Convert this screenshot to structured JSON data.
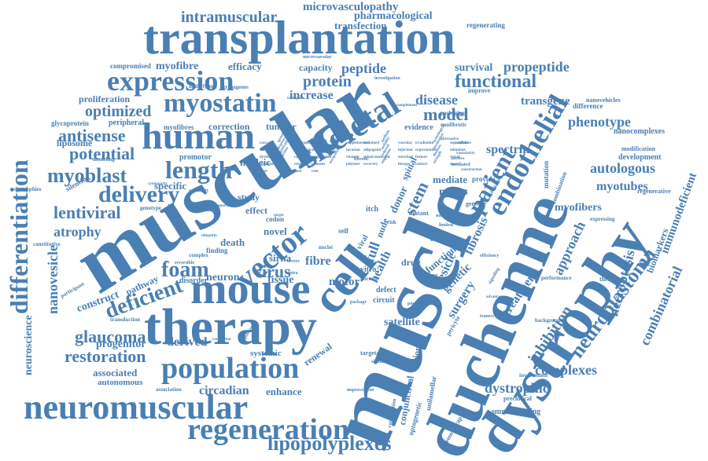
{
  "palette": {
    "word_color": "#4a7fb3",
    "background": "#ffffff"
  },
  "words": {
    "muscle": "muscle",
    "muscular": "muscular",
    "duchenne": "duchenne",
    "dystrophy": "dystrophy",
    "transplantation": "transplantation",
    "therapy": "therapy",
    "mouse": "mouse",
    "cell": "cell",
    "vector": "vector",
    "neuromuscular": "neuromuscular",
    "human": "human",
    "expression": "expression",
    "skeletal": "skeletal",
    "myostatin": "myostatin",
    "population": "population",
    "regeneration": "regeneration",
    "differentiation": "differentiation",
    "endothelial": "endothelial",
    "patient": "patient",
    "neuroblastoma": "neuroblastoma",
    "length": "length",
    "delivery": "delivery",
    "lipopolyplexes": "lipopolyplexes",
    "intramuscular": "intramuscular",
    "microvasculopathy": "microvasculopathy",
    "pharmacological": "pharmacological",
    "transfection": "transfection",
    "regenerating": "regenerating",
    "functional": "functional",
    "propeptide": "propeptide",
    "survival": "survival",
    "peptide": "peptide",
    "protein": "protein",
    "model": "model",
    "disease": "disease",
    "increase": "increase",
    "transgene": "transgene",
    "phenotype": "phenotype",
    "myoblast": "myoblast",
    "antisense": "antisense",
    "potential": "potential",
    "optimized": "optimized",
    "proliferation": "proliferation",
    "myofibre": "myofibre",
    "efficacy": "efficacy",
    "capacity": "capacity",
    "lentiviral": "lentiviral",
    "atrophy": "atrophy",
    "foam": "foam",
    "deficient": "deficient",
    "glaucoma": "glaucoma",
    "restoration": "restoration",
    "progenitor": "progenitor",
    "derived": "derived",
    "nanovesicle": "nanovesicle",
    "neuroscience": "neuroscience",
    "construct": "construct",
    "associated": "associated",
    "autonomous": "autonomous",
    "circadian": "circadian",
    "enhance": "enhance",
    "virus": "virus",
    "fibre": "fibre",
    "tissue": "tissue",
    "neuron": "neuron",
    "motor": "motor",
    "spectrin": "spectrin",
    "autologous": "autologous",
    "myotubes": "myotubes",
    "myofibers": "myofibers",
    "approach": "approach",
    "inhibition": "inhibition",
    "necroptosis": "necroptosis",
    "combinatorial": "combinatorial",
    "complexes": "complexes",
    "dystrophic": "dystrophic",
    "immunodeficient": "immunodeficient",
    "biomarkers": "biomarkers",
    "treatment": "treatment",
    "fibrosis": "fibrosis",
    "vesicle": "vesicle",
    "surgery": "surgery",
    "genetic": "genetic",
    "satellite": "satellite",
    "strategy": "strategy",
    "renewal": "renewal",
    "systemic": "systemic",
    "health": "health",
    "nucleic": "nucleic",
    "specific": "specific",
    "promotor": "promotor",
    "myofibres": "myofibres",
    "correction": "correction",
    "tumour": "tumour",
    "liposome": "liposome",
    "glycoprotein": "glycoprotein",
    "peripheral": "peripheral",
    "compromised": "compromised",
    "minus": "minus",
    "mediate": "mediate",
    "stem": "stem",
    "donor": "donor",
    "drug": "drug",
    "function": "function",
    "study": "study",
    "effect": "effect",
    "death": "death",
    "novel": "novel",
    "sirna": "sirna",
    "pathway": "pathway",
    "disorder": "disorder",
    "defect": "defect",
    "circuit": "circuit",
    "nanocomplexes": "nanocomplexes",
    "modification": "modification",
    "development": "development",
    "regenerative": "regenerative",
    "nanovehicles": "nanovehicles",
    "difference": "difference",
    "improve": "improve",
    "evidence": "evidence",
    "nonfibrotic": "nonfibrotic",
    "packaging": "packaging",
    "investigation": "investigation",
    "underlying": "underlying",
    "transgenes": "transgenes",
    "modeling": "modeling",
    "silencing": "silencing",
    "dystrophies": "dystrophies",
    "genotype": "genotype",
    "constitutive": "constitutive",
    "participant": "participant",
    "transduction": "transduction",
    "background": "background",
    "involvement": "involvement",
    "preclinical": "preclinical",
    "smn-restoring": "smn−restoring",
    "chemotherapy": "chemotherapy",
    "therapies": "therapies",
    "performance": "performance",
    "expressing": "expressing",
    "association": "association",
    "improvement": "improvement",
    "contribution": "contribution",
    "optogenetic": "optogenetic",
    "conjunctival": "conjunctival",
    "unilamellar": "unilamellar",
    "cationic": "cationic",
    "targetable": "targetable",
    "significance": "significance",
    "pericyte": "pericyte",
    "itch": "itch",
    "self": "self",
    "vitro": "vitro",
    "normal": "normal",
    "provide": "provide",
    "mutation": "mutation",
    "combination": "combination",
    "transcription": "transcription",
    "nude": "nude",
    "full": "full",
    "spinal": "spinal",
    "cancer": "cancer",
    "genome": "genome",
    "codon": "codon",
    "nuclei": "nuclei",
    "capability": "capability",
    "cytotoxicity": "cytotoxicity",
    "express": "express",
    "finding": "finding",
    "complex": "complex",
    "reversible": "reversible",
    "ubiquitin": "ubiquitin",
    "limited": "limited",
    "mutant": "mutant",
    "viral": "viral",
    "package": "package",
    "outcome": "outcome",
    "possible": "possible",
    "advantage": "advantage",
    "efficiency": "efficiency",
    "signaling": "signaling",
    "risk": "risk",
    "vascularity": "vascularity",
    "cascade": "cascade",
    "deficiency": "deficiency",
    "construction": "construction",
    "mediated": "mediated",
    "quantified": "quantified",
    "electrophysiology": "electrophysiology",
    "regulated": "regulated",
    "target": "target",
    "severe": "severe",
    "intra": "intra",
    "important": "important",
    "evaluation": "evaluation",
    "correlation": "correlation",
    "publisher": "publisher",
    "supplemented": "supplemented",
    "sustained": "sustained",
    "medium": "medium",
    "number": "number",
    "positive": "positive",
    "alternative": "alternative",
    "candidate": "candidate",
    "vascular": "vascular",
    "irradiation": "irradiation",
    "neurological": "neurological",
    "separation": "separation",
    "clinical": "clinical",
    "degeneration": "degeneration",
    "resolution": "resolution",
    "promoter": "promoter",
    "fibrotic": "fibrotic",
    "efficiently": "efficiently",
    "endogenous": "endogenous",
    "microvascular": "microvascular",
    "transgenic": "transgenic",
    "invasion": "invasion",
    "complement": "complement",
    "adipogenic": "adipogenic",
    "mobility": "mobility",
    "injection": "injection",
    "rejuvenation": "rejuvenation",
    "incubation": "incubation",
    "stimulate": "stimulate",
    "dysfunction": "dysfunction",
    "degenerative": "degenerative",
    "concern": "concern",
    "suppression": "suppression",
    "cellular": "cellular",
    "vitamin": "vitamin",
    "spinalmuscular": "spinal muscular",
    "reduced": "reduced",
    "enriched": "enriched",
    "feature": "feature",
    "diseases": "diseases",
    "signal": "signal",
    "transient": "transient",
    "production": "production",
    "response": "response",
    "immune": "immune",
    "myopathy": "myopathy",
    "polymer": "polymer",
    "recovery": "recovery",
    "migration": "migration",
    "lineage": "lineage",
    "contact": "contact",
    "strength": "strength",
    "mass": "mass",
    "fiber": "fiber",
    "gene": "gene",
    "dose": "dose",
    "rate": "rate"
  }
}
